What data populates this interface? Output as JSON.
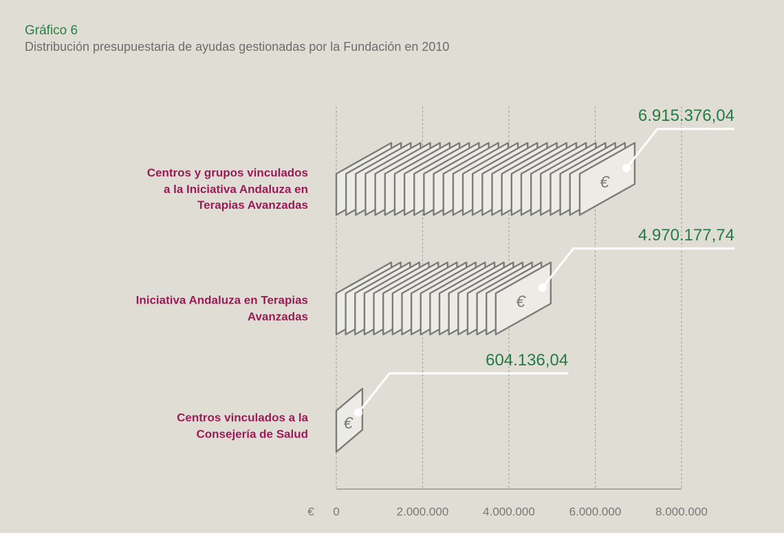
{
  "chart_data": {
    "type": "pictograph_bar",
    "title": "Gráfico 6",
    "subtitle": "Distribución presupuestaria de ayudas gestionadas por la Fundación en 2010",
    "categories": [
      "Centros y grupos vinculados\na la Iniciativa Andaluza en\nTerapias Avanzadas",
      "Iniciativa Andaluza en Terapias\nAvanzadas",
      "Centros vinculados a la\nConsejería de Salud"
    ],
    "values": [
      6915376.04,
      4970177.74,
      604136.04
    ],
    "value_labels": [
      "6.915.376,04",
      "4.970.177,74",
      "604.136,04"
    ],
    "x_unit": "€",
    "xlim": [
      0,
      8000000
    ],
    "xticks": [
      0,
      {
        "value": 2000000,
        "label": "2.000.000"
      },
      {
        "value": 4000000,
        "label": "4.000.000"
      },
      {
        "value": 6000000,
        "label": "6.000.000"
      },
      {
        "value": 8000000,
        "label": "8.000.000"
      }
    ],
    "grid": true,
    "color": "#ecebe6"
  }
}
